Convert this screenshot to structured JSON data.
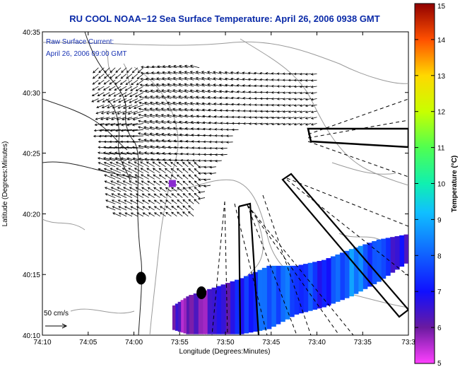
{
  "chart_data": {
    "type": "heatmap",
    "title": "RU COOL  NOAA−12  Sea Surface Temperature:  April 26, 2006 0938 GMT",
    "annotation_lines": [
      "Raw Surface Current:",
      "April 26, 2006 09:00 GMT"
    ],
    "xlabel": "Longitude (Degrees:Minutes)",
    "ylabel": "Latitude (Degrees:Minutes)",
    "colorbar_label": "Temperature (°C)",
    "xlim_deg": [
      74.1667,
      73.5
    ],
    "ylim_deg": [
      40.1667,
      40.5833
    ],
    "x_ticks": [
      {
        "label": "74:10",
        "value": 74.1667
      },
      {
        "label": "74:05",
        "value": 74.0833
      },
      {
        "label": "74:00",
        "value": 74.0
      },
      {
        "label": "73:55",
        "value": 73.9167
      },
      {
        "label": "73:50",
        "value": 73.8333
      },
      {
        "label": "73:45",
        "value": 73.75
      },
      {
        "label": "73:40",
        "value": 73.6667
      },
      {
        "label": "73:35",
        "value": 73.5833
      },
      {
        "label": "73:3",
        "value": 73.5
      }
    ],
    "y_ticks": [
      {
        "label": "40:35",
        "value": 40.5833
      },
      {
        "label": "40:30",
        "value": 40.5
      },
      {
        "label": "40:25",
        "value": 40.4167
      },
      {
        "label": "40:20",
        "value": 40.3333
      },
      {
        "label": "40:15",
        "value": 40.25
      },
      {
        "label": "40:10",
        "value": 40.1667
      }
    ],
    "colorbar_ticks": [
      "5",
      "6",
      "7",
      "8",
      "9",
      "10",
      "11",
      "12",
      "13",
      "14",
      "15"
    ],
    "colorbar_range": [
      5,
      15
    ],
    "scale_label": "50 cm/s",
    "sst_region": [
      {
        "lon": 73.5,
        "lat_bottom": 40.265,
        "lat_top": 40.305,
        "temp": 6.3
      },
      {
        "lon": 73.55,
        "lat_bottom": 40.24,
        "lat_top": 40.298,
        "temp": 7.5
      },
      {
        "lon": 73.6,
        "lat_bottom": 40.22,
        "lat_top": 40.285,
        "temp": 8.4
      },
      {
        "lon": 73.65,
        "lat_bottom": 40.205,
        "lat_top": 40.27,
        "temp": 7.2
      },
      {
        "lon": 73.7,
        "lat_bottom": 40.195,
        "lat_top": 40.262,
        "temp": 7.8
      },
      {
        "lon": 73.75,
        "lat_bottom": 40.175,
        "lat_top": 40.262,
        "temp": 8.2
      },
      {
        "lon": 73.8,
        "lat_bottom": 40.168,
        "lat_top": 40.245,
        "temp": 7.0
      },
      {
        "lon": 73.85,
        "lat_bottom": 40.168,
        "lat_top": 40.232,
        "temp": 6.2
      },
      {
        "lon": 73.9,
        "lat_bottom": 40.168,
        "lat_top": 40.22,
        "temp": 5.7
      },
      {
        "lon": 73.93,
        "lat_bottom": 40.175,
        "lat_top": 40.205,
        "temp": 6.4
      }
    ],
    "markers": [
      {
        "lon": 73.987,
        "lat": 40.245,
        "kind": "buoy"
      },
      {
        "lon": 73.877,
        "lat": 40.225,
        "kind": "buoy"
      },
      {
        "lon": 73.93,
        "lat": 40.375,
        "kind": "site"
      }
    ],
    "series": [
      {
        "name": "",
        "points": [
          [
            74.05,
            40.52
          ],
          [
            74.03,
            40.5
          ],
          [
            73.99,
            40.44
          ],
          [
            73.97,
            40.4
          ],
          [
            73.96,
            40.36
          ],
          [
            73.965,
            40.3
          ],
          [
            73.975,
            40.24
          ],
          [
            73.985,
            40.2
          ],
          [
            73.99,
            40.1667
          ]
        ]
      },
      {
        "name": "",
        "points": [
          [
            73.98,
            40.56
          ],
          [
            73.92,
            40.54
          ],
          [
            73.85,
            40.52
          ],
          [
            73.78,
            40.5
          ],
          [
            73.72,
            40.47
          ],
          [
            73.66,
            40.44
          ],
          [
            73.6,
            40.41
          ],
          [
            73.5,
            40.41
          ]
        ]
      }
    ],
    "current_field_extent": {
      "lon_range": [
        73.6667,
        74.0833
      ],
      "lat_range": [
        40.33,
        40.54
      ]
    }
  }
}
